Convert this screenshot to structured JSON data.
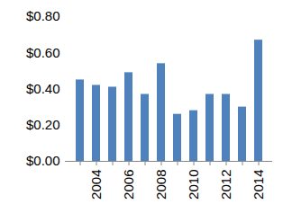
{
  "chart_data": {
    "type": "bar",
    "categories": [
      null,
      "2004",
      null,
      "2006",
      null,
      "2008",
      null,
      "2010",
      null,
      "2012",
      null,
      "2014"
    ],
    "values": [
      0.45,
      0.42,
      0.41,
      0.49,
      0.37,
      0.54,
      0.26,
      0.28,
      0.37,
      0.37,
      0.3,
      0.67
    ],
    "color": "#4f81bd",
    "ylim": [
      0,
      0.8
    ],
    "yticks": [
      {
        "value": 0,
        "label": "$0.00"
      },
      {
        "value": 0.2,
        "label": "$0.20"
      },
      {
        "value": 0.4,
        "label": "$0.40"
      },
      {
        "value": 0.6,
        "label": "$0.60"
      },
      {
        "value": 0.8,
        "label": "$0.80"
      }
    ],
    "grid": false
  }
}
